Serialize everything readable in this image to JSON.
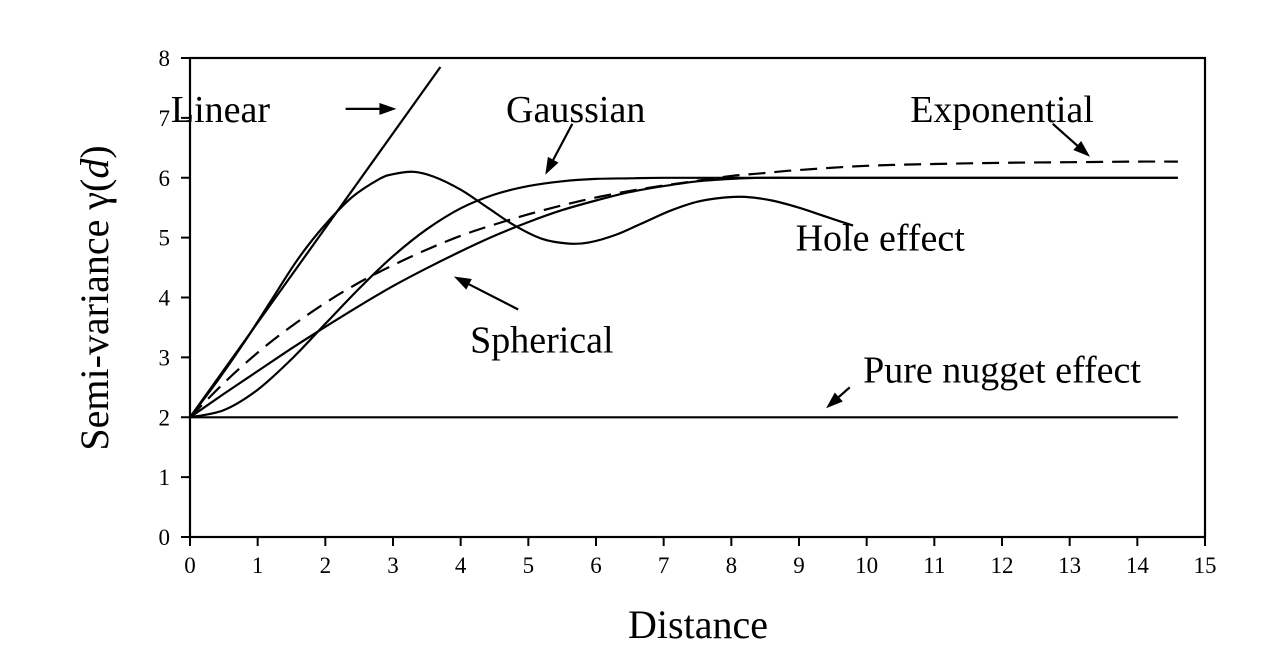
{
  "chart_data": {
    "type": "line",
    "title": "",
    "xlabel": "Distance",
    "ylabel_main": "Semi-variance γ(",
    "ylabel_italic": "d",
    "ylabel_close": ")",
    "xlim": [
      0,
      15
    ],
    "ylim": [
      0,
      8
    ],
    "xticks": [
      "0",
      "1",
      "2",
      "3",
      "4",
      "5",
      "6",
      "7",
      "8",
      "9",
      "10",
      "11",
      "12",
      "13",
      "14",
      "15"
    ],
    "yticks": [
      "0",
      "1",
      "2",
      "3",
      "4",
      "5",
      "6",
      "7",
      "8"
    ],
    "grid": false,
    "legend": "none",
    "series": [
      {
        "name": "Linear",
        "style": "solid",
        "x": [
          0,
          3.7
        ],
        "y": [
          2,
          7.85
        ]
      },
      {
        "name": "Gaussian",
        "style": "solid",
        "x": [
          0,
          0.5,
          1,
          1.5,
          2,
          2.5,
          3,
          3.5,
          4,
          4.5,
          5,
          5.5,
          6,
          6.5,
          7,
          8,
          10,
          14.6
        ],
        "y": [
          2,
          2.12,
          2.46,
          2.97,
          3.56,
          4.15,
          4.69,
          5.14,
          5.49,
          5.72,
          5.86,
          5.94,
          5.98,
          5.99,
          6.0,
          6.0,
          6.0,
          6.0
        ]
      },
      {
        "name": "Exponential",
        "style": "dashed",
        "x": [
          0,
          0.5,
          1,
          1.5,
          2,
          2.5,
          3,
          3.5,
          4,
          4.5,
          5,
          5.5,
          6,
          6.5,
          7,
          7.5,
          8,
          8.5,
          9,
          10,
          11,
          12,
          13,
          14,
          14.6
        ],
        "y": [
          2,
          2.57,
          3.08,
          3.52,
          3.91,
          4.25,
          4.54,
          4.8,
          5.03,
          5.22,
          5.39,
          5.54,
          5.67,
          5.78,
          5.87,
          5.95,
          6.03,
          6.08,
          6.13,
          6.2,
          6.23,
          6.25,
          6.26,
          6.27,
          6.27
        ]
      },
      {
        "name": "Spherical",
        "style": "solid",
        "x": [
          0,
          0.5,
          1,
          1.5,
          2,
          2.5,
          3,
          3.5,
          4,
          4.5,
          5,
          5.5,
          6,
          6.5,
          7,
          7.5,
          8,
          8.5,
          9,
          10,
          12,
          14.6
        ],
        "y": [
          2,
          2.39,
          2.77,
          3.15,
          3.51,
          3.86,
          4.19,
          4.49,
          4.77,
          5.03,
          5.26,
          5.46,
          5.62,
          5.76,
          5.86,
          5.94,
          5.98,
          6.0,
          6.0,
          6.0,
          6.0,
          6.0
        ]
      },
      {
        "name": "Hole effect",
        "style": "solid",
        "x": [
          0,
          0.4,
          0.8,
          1.2,
          1.6,
          2.0,
          2.4,
          2.8,
          3.0,
          3.3,
          3.6,
          4.0,
          4.4,
          4.8,
          5.2,
          5.6,
          5.9,
          6.3,
          6.7,
          7.1,
          7.5,
          7.9,
          8.2,
          8.6,
          9.0,
          9.4,
          9.8
        ],
        "y": [
          2,
          2.6,
          3.25,
          3.95,
          4.65,
          5.22,
          5.68,
          5.98,
          6.06,
          6.1,
          6.02,
          5.8,
          5.5,
          5.2,
          4.98,
          4.9,
          4.92,
          5.05,
          5.25,
          5.45,
          5.6,
          5.67,
          5.68,
          5.62,
          5.5,
          5.35,
          5.2
        ]
      },
      {
        "name": "Pure nugget effect",
        "style": "solid",
        "x": [
          0,
          14.6
        ],
        "y": [
          2,
          2
        ]
      }
    ],
    "annotations": [
      {
        "text": "Linear",
        "text_x": 0.45,
        "text_y": 7.15,
        "arrow_from": [
          2.3,
          7.15
        ],
        "arrow_to": [
          3.05,
          7.15
        ]
      },
      {
        "text": "Gaussian",
        "text_x": 5.7,
        "text_y": 7.15,
        "arrow_from": [
          5.65,
          6.9
        ],
        "arrow_to": [
          5.25,
          6.05
        ]
      },
      {
        "text": "Exponential",
        "text_x": 12.0,
        "text_y": 7.15,
        "arrow_from": [
          12.75,
          6.9
        ],
        "arrow_to": [
          13.3,
          6.35
        ]
      },
      {
        "text": "Hole effect",
        "text_x": 10.2,
        "text_y": 5.0,
        "arrow_from": null,
        "arrow_to": null
      },
      {
        "text": "Spherical",
        "text_x": 5.2,
        "text_y": 3.3,
        "arrow_from": [
          4.85,
          3.8
        ],
        "arrow_to": [
          3.9,
          4.35
        ]
      },
      {
        "text": "Pure nugget effect",
        "text_x": 12.0,
        "text_y": 2.8,
        "arrow_from": [
          9.75,
          2.5
        ],
        "arrow_to": [
          9.4,
          2.15
        ]
      }
    ]
  }
}
